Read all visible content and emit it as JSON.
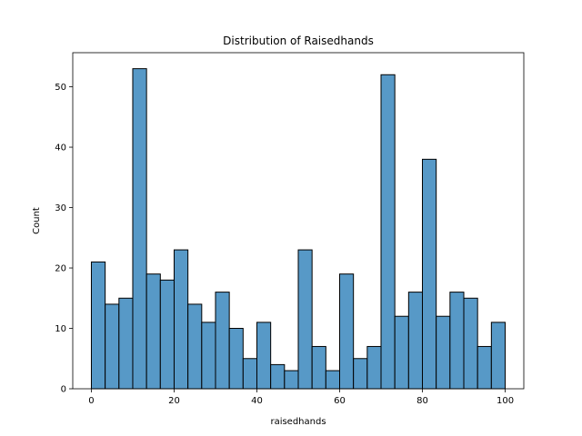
{
  "chart_data": {
    "type": "bar",
    "title": "Distribution of Raisedhands",
    "xlabel": "raisedhands",
    "ylabel": "Count",
    "bin_start": 0,
    "bin_width": 3.3333,
    "counts": [
      21,
      14,
      15,
      53,
      19,
      18,
      23,
      14,
      11,
      16,
      10,
      5,
      11,
      4,
      3,
      23,
      7,
      3,
      19,
      5,
      7,
      52,
      12,
      16,
      38,
      12,
      16,
      15,
      7,
      11
    ],
    "xlim": [
      -4.5,
      104.5
    ],
    "ylim": [
      0,
      55.65
    ],
    "xticks": [
      0,
      20,
      40,
      60,
      80,
      100
    ],
    "yticks": [
      0,
      10,
      20,
      30,
      40,
      50
    ],
    "bar_color": "#5799c7",
    "edge_color": "#000000",
    "grid": false
  }
}
